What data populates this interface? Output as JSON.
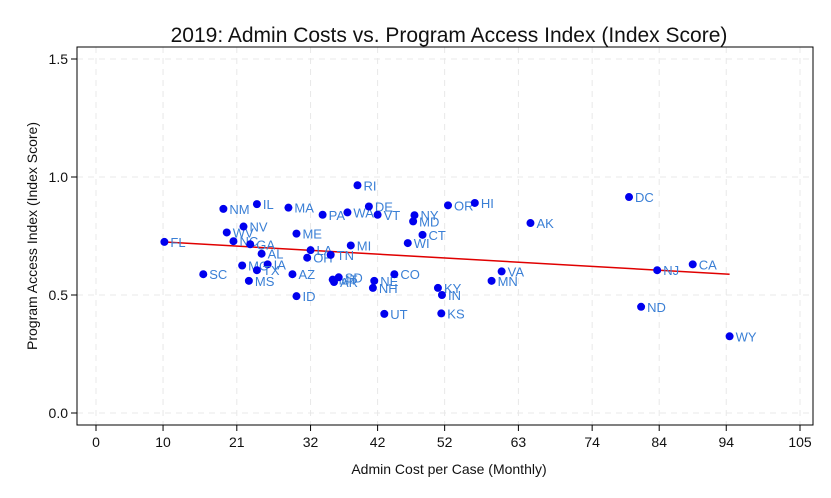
{
  "chart_data": {
    "type": "scatter",
    "title": "2019: Admin Costs vs. Program Access Index (Index Score)",
    "xlabel": "Admin Cost per Case (Monthly)",
    "ylabel": "Program Access Index (Index Score)",
    "xlim": [
      0,
      105
    ],
    "ylim": [
      0,
      1.5
    ],
    "x_ticks": [
      0,
      10,
      21,
      32,
      42,
      52,
      63,
      74,
      84,
      94,
      105
    ],
    "y_ticks": [
      0.0,
      0.5,
      1.0,
      1.5
    ],
    "x_tick_labels": [
      "0",
      "10",
      "21",
      "32",
      "42",
      "52",
      "63",
      "74",
      "84",
      "94",
      "105"
    ],
    "y_tick_labels": [
      "0.0",
      "0.5",
      "1.0",
      "1.5"
    ],
    "grid": true,
    "colors": {
      "points": "#0000ee",
      "labels": "#3a7fd5",
      "trend": "#e00000",
      "frame": "#000000",
      "grid": "#e8e8e8"
    },
    "trendline": {
      "x": [
        10,
        94.5
      ],
      "y": [
        0.725,
        0.588
      ]
    },
    "points": [
      {
        "label": "FL",
        "x": 10.2,
        "y": 0.725
      },
      {
        "label": "SC",
        "x": 16.0,
        "y": 0.588
      },
      {
        "label": "NM",
        "x": 19.0,
        "y": 0.865
      },
      {
        "label": "WV",
        "x": 19.5,
        "y": 0.765
      },
      {
        "label": "NC",
        "x": 20.5,
        "y": 0.728
      },
      {
        "label": "NV",
        "x": 22.0,
        "y": 0.79
      },
      {
        "label": "MO",
        "x": 21.8,
        "y": 0.625
      },
      {
        "label": "GA",
        "x": 23.0,
        "y": 0.715
      },
      {
        "label": "IL",
        "x": 24.0,
        "y": 0.885
      },
      {
        "label": "AL",
        "x": 24.7,
        "y": 0.675
      },
      {
        "label": "IA",
        "x": 25.6,
        "y": 0.63
      },
      {
        "label": "TX",
        "x": 24.0,
        "y": 0.605
      },
      {
        "label": "MS",
        "x": 22.8,
        "y": 0.56
      },
      {
        "label": "MA",
        "x": 28.7,
        "y": 0.87
      },
      {
        "label": "AZ",
        "x": 29.3,
        "y": 0.588
      },
      {
        "label": "ME",
        "x": 29.9,
        "y": 0.76
      },
      {
        "label": "ID",
        "x": 29.9,
        "y": 0.495
      },
      {
        "label": "LA",
        "x": 32.0,
        "y": 0.69
      },
      {
        "label": "OH",
        "x": 31.5,
        "y": 0.658
      },
      {
        "label": "PA",
        "x": 33.8,
        "y": 0.84
      },
      {
        "label": "TN",
        "x": 35.0,
        "y": 0.67
      },
      {
        "label": "MT",
        "x": 35.3,
        "y": 0.565
      },
      {
        "label": "AR",
        "x": 35.5,
        "y": 0.555
      },
      {
        "label": "SD",
        "x": 36.2,
        "y": 0.575
      },
      {
        "label": "WA",
        "x": 37.5,
        "y": 0.85
      },
      {
        "label": "MI",
        "x": 38.0,
        "y": 0.71
      },
      {
        "label": "RI",
        "x": 39.0,
        "y": 0.965
      },
      {
        "label": "DE",
        "x": 40.7,
        "y": 0.875
      },
      {
        "label": "VT",
        "x": 42.0,
        "y": 0.84
      },
      {
        "label": "NE",
        "x": 41.5,
        "y": 0.56
      },
      {
        "label": "NH",
        "x": 41.3,
        "y": 0.53
      },
      {
        "label": "UT",
        "x": 43.0,
        "y": 0.42
      },
      {
        "label": "CO",
        "x": 44.5,
        "y": 0.588
      },
      {
        "label": "WI",
        "x": 46.5,
        "y": 0.72
      },
      {
        "label": "NY",
        "x": 47.5,
        "y": 0.838
      },
      {
        "label": "MD",
        "x": 47.3,
        "y": 0.812
      },
      {
        "label": "CT",
        "x": 48.7,
        "y": 0.755
      },
      {
        "label": "KY",
        "x": 51.0,
        "y": 0.53
      },
      {
        "label": "IN",
        "x": 51.6,
        "y": 0.5
      },
      {
        "label": "KS",
        "x": 51.5,
        "y": 0.422
      },
      {
        "label": "OR",
        "x": 52.5,
        "y": 0.88
      },
      {
        "label": "HI",
        "x": 56.5,
        "y": 0.89
      },
      {
        "label": "VA",
        "x": 60.5,
        "y": 0.6
      },
      {
        "label": "MN",
        "x": 59.0,
        "y": 0.56
      },
      {
        "label": "AK",
        "x": 64.8,
        "y": 0.805
      },
      {
        "label": "DC",
        "x": 79.5,
        "y": 0.915
      },
      {
        "label": "NJ",
        "x": 83.7,
        "y": 0.605
      },
      {
        "label": "ND",
        "x": 81.3,
        "y": 0.45
      },
      {
        "label": "CA",
        "x": 89.0,
        "y": 0.63
      },
      {
        "label": "WY",
        "x": 94.5,
        "y": 0.325
      }
    ]
  }
}
